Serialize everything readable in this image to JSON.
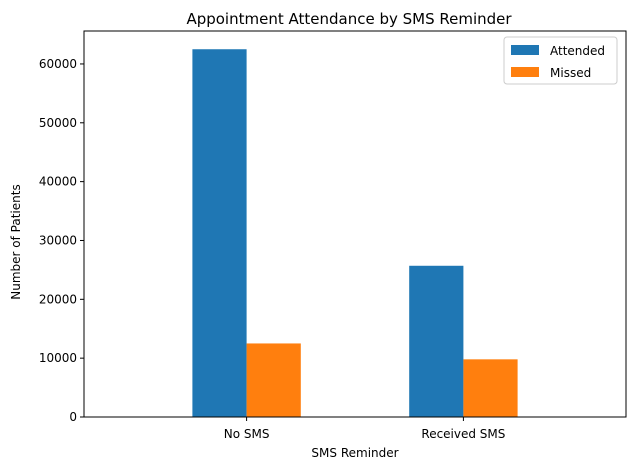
{
  "chart_data": {
    "type": "bar",
    "title": "Appointment Attendance by SMS Reminder",
    "xlabel": "SMS Reminder",
    "ylabel": "Number of Patients",
    "categories": [
      "No SMS",
      "Received SMS"
    ],
    "series": [
      {
        "name": "Attended",
        "values": [
          62500,
          25700
        ],
        "color": "#1f77b4"
      },
      {
        "name": "Missed",
        "values": [
          12500,
          9800
        ],
        "color": "#ff7f0e"
      }
    ],
    "ylim": [
      0,
      65600
    ],
    "yticks": [
      0,
      10000,
      20000,
      30000,
      40000,
      50000,
      60000
    ],
    "grid": false,
    "legend_position": "top-right"
  }
}
